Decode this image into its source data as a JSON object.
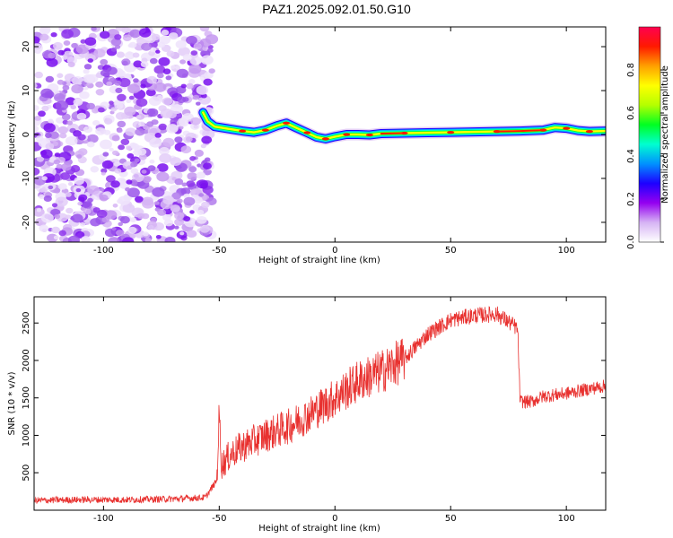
{
  "title": "PAZ1.2025.092.01.50.G10",
  "chart_data": [
    {
      "type": "heatmap",
      "xlabel": "Height of straight line (km)",
      "ylabel": "Frequency (Hz)",
      "xlim": [
        -130,
        117
      ],
      "ylim": [
        -24.5,
        24.5
      ],
      "x_ticks": [
        -100,
        -50,
        0,
        50,
        100
      ],
      "y_ticks": [
        -20,
        -10,
        0,
        10,
        20
      ],
      "noise_region_x": [
        -130,
        -56
      ],
      "ridge": [
        [
          -57,
          5
        ],
        [
          -55,
          3
        ],
        [
          -52,
          1.8
        ],
        [
          -45,
          1.2
        ],
        [
          -40,
          0.8
        ],
        [
          -35,
          0.5
        ],
        [
          -30,
          1.0
        ],
        [
          -25,
          2.0
        ],
        [
          -21,
          2.6
        ],
        [
          -17,
          1.6
        ],
        [
          -12,
          0.4
        ],
        [
          -8,
          -0.6
        ],
        [
          -4,
          -1.0
        ],
        [
          0,
          -0.5
        ],
        [
          5,
          0
        ],
        [
          10,
          0
        ],
        [
          15,
          -0.1
        ],
        [
          20,
          0.2
        ],
        [
          30,
          0.3
        ],
        [
          40,
          0.4
        ],
        [
          50,
          0.5
        ],
        [
          60,
          0.6
        ],
        [
          70,
          0.7
        ],
        [
          80,
          0.8
        ],
        [
          90,
          1.0
        ],
        [
          95,
          1.6
        ],
        [
          100,
          1.4
        ],
        [
          105,
          0.9
        ],
        [
          110,
          0.7
        ],
        [
          117,
          0.8
        ]
      ],
      "colorbar": {
        "label": "Normalized spectral amplitude",
        "range": [
          0,
          1
        ],
        "ticks": [
          "0.0",
          "0.2",
          "0.4",
          "0.6",
          "0.8"
        ],
        "colors": [
          "#ffffff",
          "#d6b4f4",
          "#9500f0",
          "#1d00ff",
          "#0091ff",
          "#00ffd0",
          "#00ff22",
          "#b4ff00",
          "#ffff00",
          "#ffa000",
          "#ff1a00",
          "#ff0050"
        ]
      }
    },
    {
      "type": "line",
      "xlabel": "Height of straight line (km)",
      "ylabel": "SNR (10 * v/v)",
      "xlim": [
        -130,
        117
      ],
      "ylim": [
        0,
        2850
      ],
      "x_ticks": [
        -100,
        -50,
        0,
        50,
        100
      ],
      "y_ticks": [
        500,
        1000,
        1500,
        2000,
        2500
      ],
      "color": "#e8312f",
      "series": [
        {
          "x": [
            -130,
            -110,
            -90,
            -70,
            -56,
            -51,
            -50,
            -49,
            -45,
            -40,
            -30,
            -20,
            -10,
            0,
            10,
            20,
            30,
            40,
            50,
            60,
            70,
            78,
            79,
            80,
            85,
            90,
            100,
            110,
            117
          ],
          "values": [
            130,
            140,
            140,
            150,
            170,
            400,
            1300,
            600,
            750,
            850,
            1000,
            1120,
            1300,
            1500,
            1720,
            1850,
            2020,
            2350,
            2540,
            2600,
            2620,
            2450,
            2400,
            1450,
            1450,
            1520,
            1560,
            1620,
            1660
          ]
        }
      ]
    }
  ]
}
